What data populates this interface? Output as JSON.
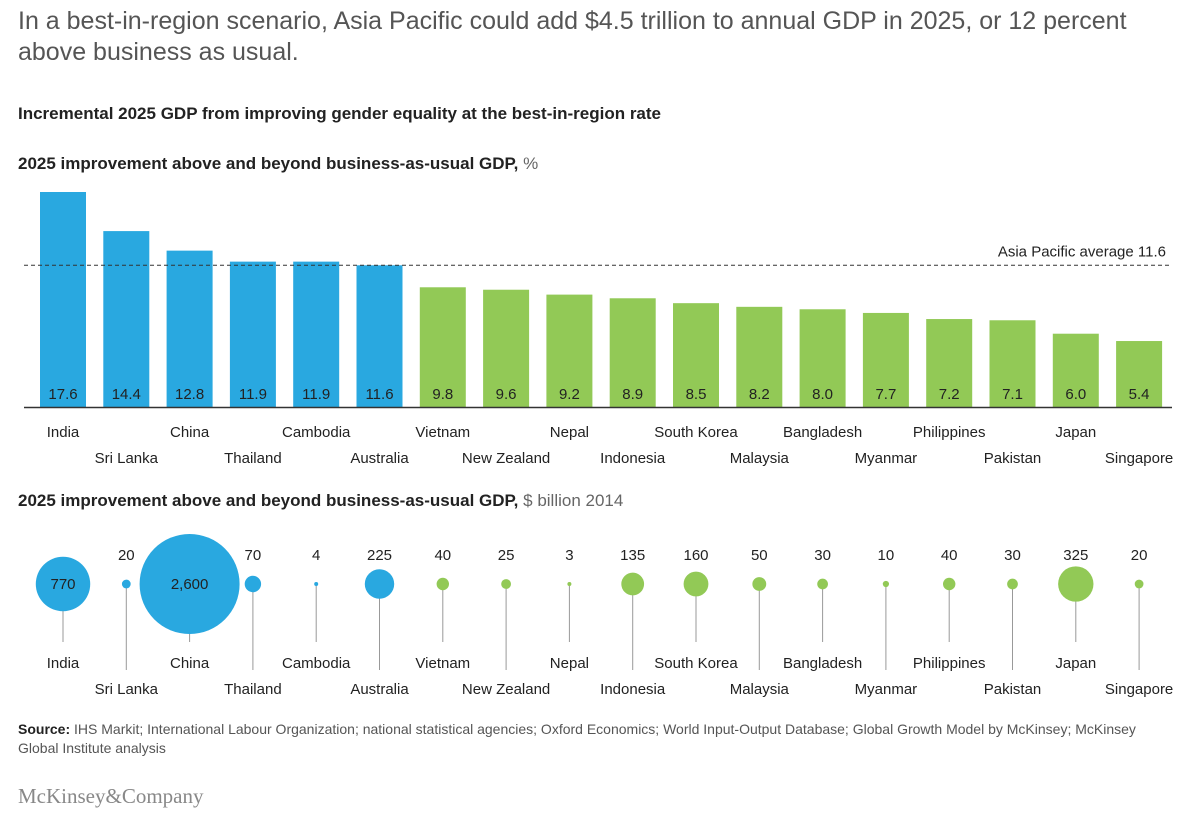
{
  "headline": "In a best-in-region scenario, Asia Pacific could add $4.5 trillion to annual GDP in 2025, or 12 percent above business as usual.",
  "subtitle": "Incremental 2025 GDP from improving gender equality at the best-in-region rate",
  "colors": {
    "blue": "#29a8e0",
    "green": "#92c956",
    "axis": "#333333",
    "stem": "#999999"
  },
  "chart_data": [
    {
      "type": "bar",
      "title": "2025 improvement above and beyond business-as-usual GDP,",
      "unit": "%",
      "categories": [
        "India",
        "Sri Lanka",
        "China",
        "Thailand",
        "Cambodia",
        "Australia",
        "Vietnam",
        "New Zealand",
        "Nepal",
        "Indonesia",
        "South Korea",
        "Malaysia",
        "Bangladesh",
        "Myanmar",
        "Philippines",
        "Pakistan",
        "Japan",
        "Singapore"
      ],
      "values": [
        17.6,
        14.4,
        12.8,
        11.9,
        11.9,
        11.6,
        9.8,
        9.6,
        9.2,
        8.9,
        8.5,
        8.2,
        8.0,
        7.7,
        7.2,
        7.1,
        6.0,
        5.4
      ],
      "value_labels": [
        "17.6",
        "14.4",
        "12.8",
        "11.9",
        "11.9",
        "11.6",
        "9.8",
        "9.6",
        "9.2",
        "8.9",
        "8.5",
        "8.2",
        "8.0",
        "7.7",
        "7.2",
        "7.1",
        "6.0",
        "5.4"
      ],
      "above_average": [
        true,
        true,
        true,
        true,
        true,
        true,
        false,
        false,
        false,
        false,
        false,
        false,
        false,
        false,
        false,
        false,
        false,
        false
      ],
      "reference_line": {
        "label": "Asia Pacific average 11.6",
        "value": 11.6
      },
      "ylim": [
        0,
        17.6
      ]
    },
    {
      "type": "scatter",
      "title": "2025 improvement above and beyond business-as-usual GDP,",
      "unit": "$ billion 2014",
      "categories": [
        "India",
        "Sri Lanka",
        "China",
        "Thailand",
        "Cambodia",
        "Australia",
        "Vietnam",
        "New Zealand",
        "Nepal",
        "Indonesia",
        "South Korea",
        "Malaysia",
        "Bangladesh",
        "Myanmar",
        "Philippines",
        "Pakistan",
        "Japan",
        "Singapore"
      ],
      "values": [
        770,
        20,
        2600,
        70,
        4,
        225,
        40,
        25,
        3,
        135,
        160,
        50,
        30,
        10,
        40,
        30,
        325,
        20
      ],
      "value_labels": [
        "770",
        "20",
        "2,600",
        "70",
        "4",
        "225",
        "40",
        "25",
        "3",
        "135",
        "160",
        "50",
        "30",
        "10",
        "40",
        "30",
        "325",
        "20"
      ],
      "above_average": [
        true,
        true,
        true,
        true,
        true,
        true,
        false,
        false,
        false,
        false,
        false,
        false,
        false,
        false,
        false,
        false,
        false,
        false
      ]
    }
  ],
  "source": {
    "label": "Source:",
    "text": "IHS Markit; International Labour Organization; national statistical agencies; Oxford Economics; World Input-Output Database; Global Growth Model by McKinsey; McKinsey Global Institute analysis"
  },
  "logo": "McKinsey&Company"
}
